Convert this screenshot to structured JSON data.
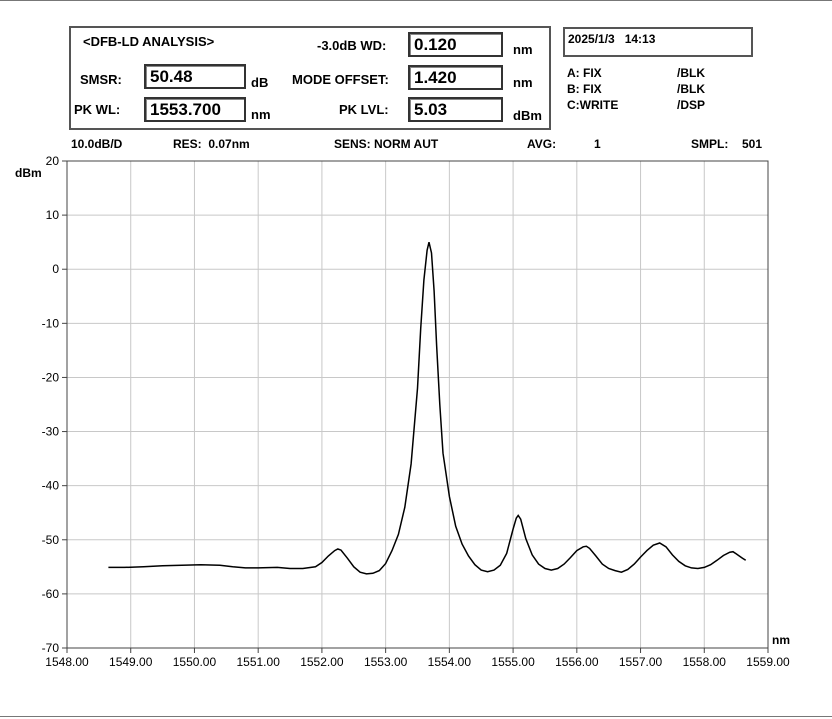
{
  "header": {
    "mode_title": "<DFB-LD ANALYSIS>",
    "fields": {
      "smsr": {
        "label": "SMSR:",
        "value": "50.48",
        "unit": "dB"
      },
      "pk_wl": {
        "label": "PK WL:",
        "value": "1553.700",
        "unit": "nm"
      },
      "wd": {
        "label": "-3.0dB WD:",
        "value": "0.120",
        "unit": "nm"
      },
      "mode_offset": {
        "label": "MODE OFFSET:",
        "value": "1.420",
        "unit": "nm"
      },
      "pk_lvl": {
        "label": "PK LVL:",
        "value": "5.03",
        "unit": "dBm"
      }
    },
    "datetime": "2025/1/3   14:13",
    "traces": [
      {
        "label": "A: FIX",
        "mode": "/BLK"
      },
      {
        "label": "B: FIX",
        "mode": "/BLK"
      },
      {
        "label": "C:WRITE",
        "mode": "/DSP"
      }
    ]
  },
  "status_bar": {
    "scale": "10.0dB/D",
    "res": "RES:  0.07nm",
    "sens": "SENS: NORM AUT",
    "avg_label": "AVG:",
    "avg_value": "1",
    "smpl_label": "SMPL:",
    "smpl_value": "501"
  },
  "chart_data": {
    "type": "line",
    "xlabel": "nm",
    "ylabel": "dBm",
    "xlim": [
      1548.0,
      1559.0
    ],
    "ylim": [
      -70,
      20
    ],
    "x_ticks": [
      "1548.00",
      "1549.00",
      "1550.00",
      "1551.00",
      "1552.00",
      "1553.00",
      "1554.00",
      "1555.00",
      "1556.00",
      "1557.00",
      "1558.00",
      "1559.00"
    ],
    "y_ticks": [
      "20",
      "10",
      "0",
      "-10",
      "-20",
      "-30",
      "-40",
      "-50",
      "-60",
      "-70"
    ],
    "grid": true,
    "series": [
      {
        "color": "#000000",
        "points": [
          [
            1548.65,
            -55.1
          ],
          [
            1548.9,
            -55.1
          ],
          [
            1549.2,
            -55.0
          ],
          [
            1549.5,
            -54.8
          ],
          [
            1549.8,
            -54.7
          ],
          [
            1550.1,
            -54.6
          ],
          [
            1550.4,
            -54.7
          ],
          [
            1550.6,
            -55.0
          ],
          [
            1550.8,
            -55.2
          ],
          [
            1551.0,
            -55.2
          ],
          [
            1551.3,
            -55.1
          ],
          [
            1551.5,
            -55.3
          ],
          [
            1551.7,
            -55.3
          ],
          [
            1551.9,
            -55.0
          ],
          [
            1552.0,
            -54.2
          ],
          [
            1552.1,
            -53.0
          ],
          [
            1552.2,
            -52.0
          ],
          [
            1552.25,
            -51.7
          ],
          [
            1552.3,
            -51.9
          ],
          [
            1552.4,
            -53.4
          ],
          [
            1552.5,
            -55.0
          ],
          [
            1552.6,
            -56.0
          ],
          [
            1552.7,
            -56.3
          ],
          [
            1552.8,
            -56.2
          ],
          [
            1552.9,
            -55.7
          ],
          [
            1553.0,
            -54.4
          ],
          [
            1553.1,
            -52.0
          ],
          [
            1553.2,
            -49.0
          ],
          [
            1553.3,
            -44.0
          ],
          [
            1553.4,
            -36.0
          ],
          [
            1553.5,
            -22.0
          ],
          [
            1553.55,
            -11.0
          ],
          [
            1553.6,
            -2.0
          ],
          [
            1553.65,
            3.5
          ],
          [
            1553.68,
            5.0
          ],
          [
            1553.72,
            3.0
          ],
          [
            1553.76,
            -4.0
          ],
          [
            1553.8,
            -14.0
          ],
          [
            1553.85,
            -25.0
          ],
          [
            1553.9,
            -34.0
          ],
          [
            1554.0,
            -42.0
          ],
          [
            1554.1,
            -47.5
          ],
          [
            1554.2,
            -50.8
          ],
          [
            1554.3,
            -53.0
          ],
          [
            1554.4,
            -54.6
          ],
          [
            1554.5,
            -55.6
          ],
          [
            1554.6,
            -55.9
          ],
          [
            1554.7,
            -55.6
          ],
          [
            1554.8,
            -54.7
          ],
          [
            1554.9,
            -52.5
          ],
          [
            1555.0,
            -48.0
          ],
          [
            1555.05,
            -46.0
          ],
          [
            1555.08,
            -45.5
          ],
          [
            1555.12,
            -46.2
          ],
          [
            1555.2,
            -49.8
          ],
          [
            1555.3,
            -52.8
          ],
          [
            1555.4,
            -54.5
          ],
          [
            1555.5,
            -55.3
          ],
          [
            1555.6,
            -55.6
          ],
          [
            1555.7,
            -55.3
          ],
          [
            1555.8,
            -54.5
          ],
          [
            1555.9,
            -53.3
          ],
          [
            1556.0,
            -52.0
          ],
          [
            1556.1,
            -51.3
          ],
          [
            1556.15,
            -51.2
          ],
          [
            1556.2,
            -51.6
          ],
          [
            1556.3,
            -53.0
          ],
          [
            1556.4,
            -54.5
          ],
          [
            1556.5,
            -55.3
          ],
          [
            1556.6,
            -55.7
          ],
          [
            1556.7,
            -56.0
          ],
          [
            1556.8,
            -55.5
          ],
          [
            1556.9,
            -54.5
          ],
          [
            1557.0,
            -53.2
          ],
          [
            1557.1,
            -52.0
          ],
          [
            1557.2,
            -51.0
          ],
          [
            1557.3,
            -50.6
          ],
          [
            1557.4,
            -51.3
          ],
          [
            1557.5,
            -52.8
          ],
          [
            1557.6,
            -54.0
          ],
          [
            1557.7,
            -54.8
          ],
          [
            1557.8,
            -55.2
          ],
          [
            1557.9,
            -55.3
          ],
          [
            1558.0,
            -55.1
          ],
          [
            1558.1,
            -54.6
          ],
          [
            1558.2,
            -53.8
          ],
          [
            1558.3,
            -52.9
          ],
          [
            1558.4,
            -52.3
          ],
          [
            1558.45,
            -52.2
          ],
          [
            1558.5,
            -52.6
          ],
          [
            1558.6,
            -53.4
          ],
          [
            1558.65,
            -53.8
          ]
        ]
      }
    ]
  }
}
